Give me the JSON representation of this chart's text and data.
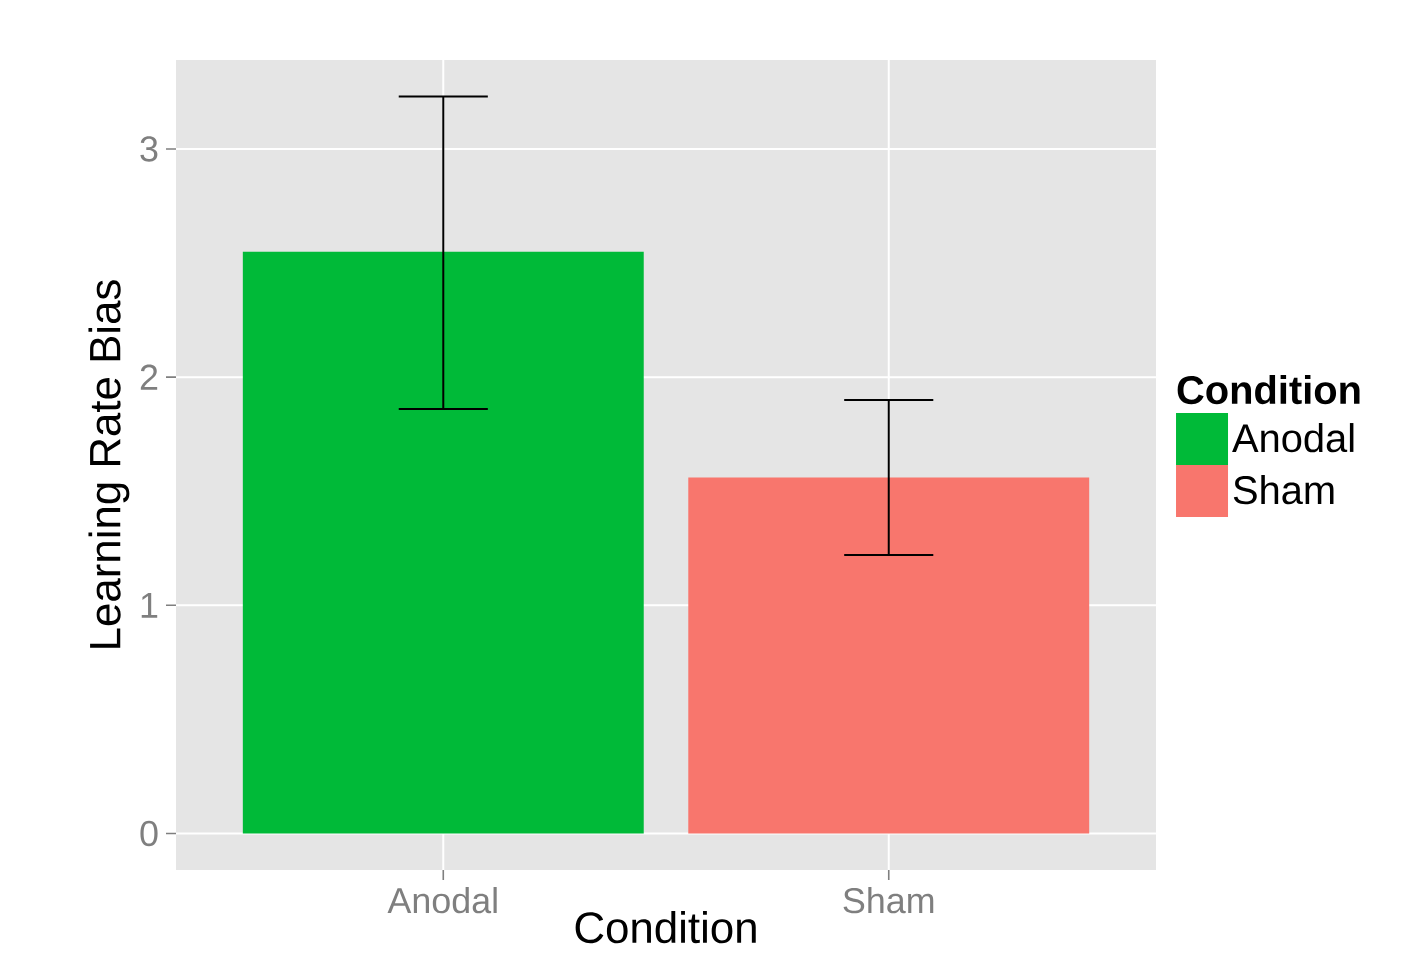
{
  "chart_data": {
    "type": "bar",
    "xlabel": "Condition",
    "ylabel": "Learning Rate Bias",
    "legend_title": "Condition",
    "categories": [
      "Anodal",
      "Sham"
    ],
    "series": [
      {
        "name": "Anodal",
        "color": "#00ba38",
        "values": [
          2.55,
          null
        ],
        "errors": [
          [
            1.86,
            3.23
          ],
          null
        ]
      },
      {
        "name": "Sham",
        "color": "#f8766d",
        "values": [
          null,
          1.56
        ],
        "errors": [
          null,
          [
            1.22,
            1.9
          ]
        ]
      }
    ],
    "ylim": [
      -0.16,
      3.39
    ],
    "yticks": [
      0,
      1,
      2,
      3
    ],
    "grid": true,
    "legend": "right"
  }
}
